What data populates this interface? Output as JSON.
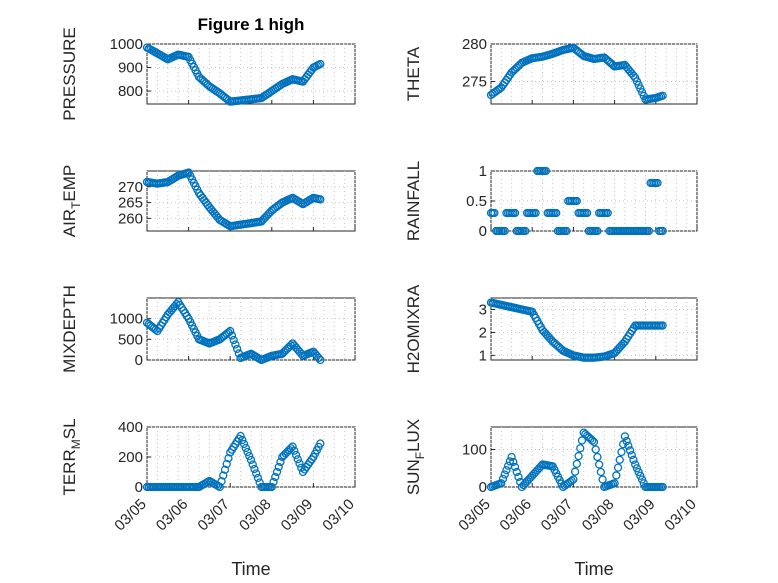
{
  "figure": {
    "title": "Figure 1 high",
    "marker_color": "#0072BD",
    "xlabel": "Time"
  },
  "chart_data": [
    {
      "type": "scatter",
      "ylabel": "PRESSURE",
      "ylabel_sub": "",
      "ylim": [
        745,
        1000
      ],
      "yticks": [
        800,
        900,
        1000
      ],
      "xlim": [
        "03/05",
        "03/10"
      ],
      "xticks": [
        "03/05",
        "03/06",
        "03/07",
        "03/08",
        "03/09",
        "03/10"
      ],
      "grid": true,
      "x": [
        "03/05 00:00",
        "03/05 06:00",
        "03/05 12:00",
        "03/05 18:00",
        "03/06 00:00",
        "03/06 06:00",
        "03/06 12:00",
        "03/06 18:00",
        "03/07 00:00",
        "03/07 06:00",
        "03/07 12:00",
        "03/07 18:00",
        "03/08 00:00",
        "03/08 06:00",
        "03/08 12:00",
        "03/08 18:00",
        "03/09 00:00",
        "03/09 04:00"
      ],
      "y": [
        985,
        960,
        935,
        955,
        945,
        860,
        820,
        790,
        755,
        760,
        765,
        770,
        800,
        830,
        850,
        840,
        900,
        915
      ]
    },
    {
      "type": "scatter",
      "ylabel": "THETA",
      "ylabel_sub": "",
      "ylim": [
        272,
        280
      ],
      "yticks": [
        275,
        280
      ],
      "xlim": [
        "03/05",
        "03/10"
      ],
      "xticks": [
        "03/05",
        "03/06",
        "03/07",
        "03/08",
        "03/09",
        "03/10"
      ],
      "grid": true,
      "x": [
        "03/05 00:00",
        "03/05 06:00",
        "03/05 12:00",
        "03/05 18:00",
        "03/06 00:00",
        "03/06 06:00",
        "03/06 12:00",
        "03/06 18:00",
        "03/07 00:00",
        "03/07 06:00",
        "03/07 12:00",
        "03/07 18:00",
        "03/08 00:00",
        "03/08 06:00",
        "03/08 12:00",
        "03/08 18:00",
        "03/09 00:00",
        "03/09 04:00"
      ],
      "y": [
        273.2,
        274.2,
        276.2,
        277.5,
        278.1,
        278.3,
        278.7,
        279.2,
        279.5,
        278.4,
        278.0,
        278.2,
        277.0,
        277.2,
        275.5,
        272.6,
        272.8,
        273.1
      ]
    },
    {
      "type": "scatter",
      "ylabel": "AIR",
      "ylabel_sub": "T",
      "ylabel_suffix": "EMP",
      "ylim": [
        256,
        275
      ],
      "yticks": [
        260,
        265,
        270
      ],
      "xlim": [
        "03/05",
        "03/10"
      ],
      "xticks": [
        "03/05",
        "03/06",
        "03/07",
        "03/08",
        "03/09",
        "03/10"
      ],
      "grid": true,
      "x": [
        "03/05 00:00",
        "03/05 06:00",
        "03/05 12:00",
        "03/05 18:00",
        "03/06 00:00",
        "03/06 06:00",
        "03/06 12:00",
        "03/06 18:00",
        "03/07 00:00",
        "03/07 06:00",
        "03/07 12:00",
        "03/07 18:00",
        "03/08 00:00",
        "03/08 06:00",
        "03/08 12:00",
        "03/08 18:00",
        "03/09 00:00",
        "03/09 04:00"
      ],
      "y": [
        271.5,
        271.0,
        271.5,
        273.5,
        274.5,
        268.0,
        263.5,
        259.5,
        257.5,
        258.0,
        258.5,
        259.0,
        262.5,
        265.0,
        266.5,
        264.5,
        266.5,
        266.0
      ]
    },
    {
      "type": "scatter",
      "ylabel": "RAINFALL",
      "ylabel_sub": "",
      "ylim": [
        0,
        1
      ],
      "yticks": [
        0,
        0.5,
        1
      ],
      "xlim": [
        "03/05",
        "03/10"
      ],
      "xticks": [
        "03/05",
        "03/06",
        "03/07",
        "03/08",
        "03/09",
        "03/10"
      ],
      "grid": true,
      "x": [
        "03/05 00:00",
        "03/05 06:00",
        "03/05 12:00",
        "03/05 18:00",
        "03/06 00:00",
        "03/06 06:00",
        "03/06 12:00",
        "03/06 18:00",
        "03/07 00:00",
        "03/07 06:00",
        "03/07 12:00",
        "03/07 18:00",
        "03/08 00:00",
        "03/08 06:00",
        "03/08 12:00",
        "03/08 18:00",
        "03/09 00:00",
        "03/09 04:00"
      ],
      "y": [
        0.3,
        0.0,
        0.3,
        0.0,
        0.3,
        1.0,
        0.3,
        0.0,
        0.5,
        0.3,
        0.0,
        0.3,
        0.0,
        0.0,
        0.0,
        0.0,
        0.8,
        0.0
      ]
    },
    {
      "type": "scatter",
      "ylabel": "MIXDEPTH",
      "ylabel_sub": "",
      "ylim": [
        0,
        1500
      ],
      "yticks": [
        0,
        500,
        1000
      ],
      "xlim": [
        "03/05",
        "03/10"
      ],
      "xticks": [
        "03/05",
        "03/06",
        "03/07",
        "03/08",
        "03/09",
        "03/10"
      ],
      "grid": true,
      "x": [
        "03/05 00:00",
        "03/05 06:00",
        "03/05 12:00",
        "03/05 18:00",
        "03/06 00:00",
        "03/06 06:00",
        "03/06 12:00",
        "03/06 18:00",
        "03/07 00:00",
        "03/07 06:00",
        "03/07 12:00",
        "03/07 18:00",
        "03/08 00:00",
        "03/08 06:00",
        "03/08 12:00",
        "03/08 18:00",
        "03/09 00:00",
        "03/09 04:00"
      ],
      "y": [
        900,
        700,
        1100,
        1400,
        1000,
        500,
        400,
        500,
        700,
        50,
        150,
        0,
        100,
        150,
        400,
        100,
        200,
        0
      ]
    },
    {
      "type": "scatter",
      "ylabel": "H2OMIXRA",
      "ylabel_sub": "",
      "ylim": [
        0.8,
        3.5
      ],
      "yticks": [
        1,
        2,
        3
      ],
      "xlim": [
        "03/05",
        "03/10"
      ],
      "xticks": [
        "03/05",
        "03/06",
        "03/07",
        "03/08",
        "03/09",
        "03/10"
      ],
      "grid": true,
      "x": [
        "03/05 00:00",
        "03/05 06:00",
        "03/05 12:00",
        "03/05 18:00",
        "03/06 00:00",
        "03/06 06:00",
        "03/06 12:00",
        "03/06 18:00",
        "03/07 00:00",
        "03/07 06:00",
        "03/07 12:00",
        "03/07 18:00",
        "03/08 00:00",
        "03/08 06:00",
        "03/08 12:00",
        "03/08 18:00",
        "03/09 00:00",
        "03/09 04:00"
      ],
      "y": [
        3.3,
        3.2,
        3.1,
        3.0,
        2.9,
        2.1,
        1.6,
        1.2,
        1.0,
        0.9,
        0.9,
        0.95,
        1.1,
        1.6,
        2.3,
        2.3,
        2.3,
        2.3
      ]
    },
    {
      "type": "scatter",
      "ylabel": "TERR",
      "ylabel_sub": "M",
      "ylabel_suffix": "SL",
      "ylim": [
        0,
        400
      ],
      "yticks": [
        0,
        200,
        400
      ],
      "xlim": [
        "03/05",
        "03/10"
      ],
      "xticks": [
        "03/05",
        "03/06",
        "03/07",
        "03/08",
        "03/09",
        "03/10"
      ],
      "grid": true,
      "x": [
        "03/05 00:00",
        "03/05 06:00",
        "03/05 12:00",
        "03/05 18:00",
        "03/06 00:00",
        "03/06 06:00",
        "03/06 12:00",
        "03/06 18:00",
        "03/07 00:00",
        "03/07 06:00",
        "03/07 12:00",
        "03/07 18:00",
        "03/08 00:00",
        "03/08 06:00",
        "03/08 12:00",
        "03/08 18:00",
        "03/09 00:00",
        "03/09 04:00"
      ],
      "y": [
        0,
        0,
        0,
        0,
        0,
        0,
        40,
        0,
        230,
        340,
        180,
        0,
        0,
        200,
        270,
        100,
        200,
        290
      ]
    },
    {
      "type": "scatter",
      "ylabel": "SUN",
      "ylabel_sub": "F",
      "ylabel_suffix": "LUX",
      "ylim": [
        0,
        160
      ],
      "yticks": [
        0,
        100
      ],
      "xlim": [
        "03/05",
        "03/10"
      ],
      "xticks": [
        "03/05",
        "03/06",
        "03/07",
        "03/08",
        "03/09",
        "03/10"
      ],
      "grid": true,
      "x": [
        "03/05 00:00",
        "03/05 06:00",
        "03/05 12:00",
        "03/05 18:00",
        "03/06 00:00",
        "03/06 06:00",
        "03/06 12:00",
        "03/06 18:00",
        "03/07 00:00",
        "03/07 06:00",
        "03/07 12:00",
        "03/07 18:00",
        "03/08 00:00",
        "03/08 06:00",
        "03/08 12:00",
        "03/08 18:00",
        "03/09 00:00",
        "03/09 04:00"
      ],
      "y": [
        0,
        10,
        80,
        0,
        30,
        60,
        55,
        0,
        20,
        145,
        120,
        0,
        10,
        135,
        60,
        0,
        0,
        0
      ]
    }
  ]
}
